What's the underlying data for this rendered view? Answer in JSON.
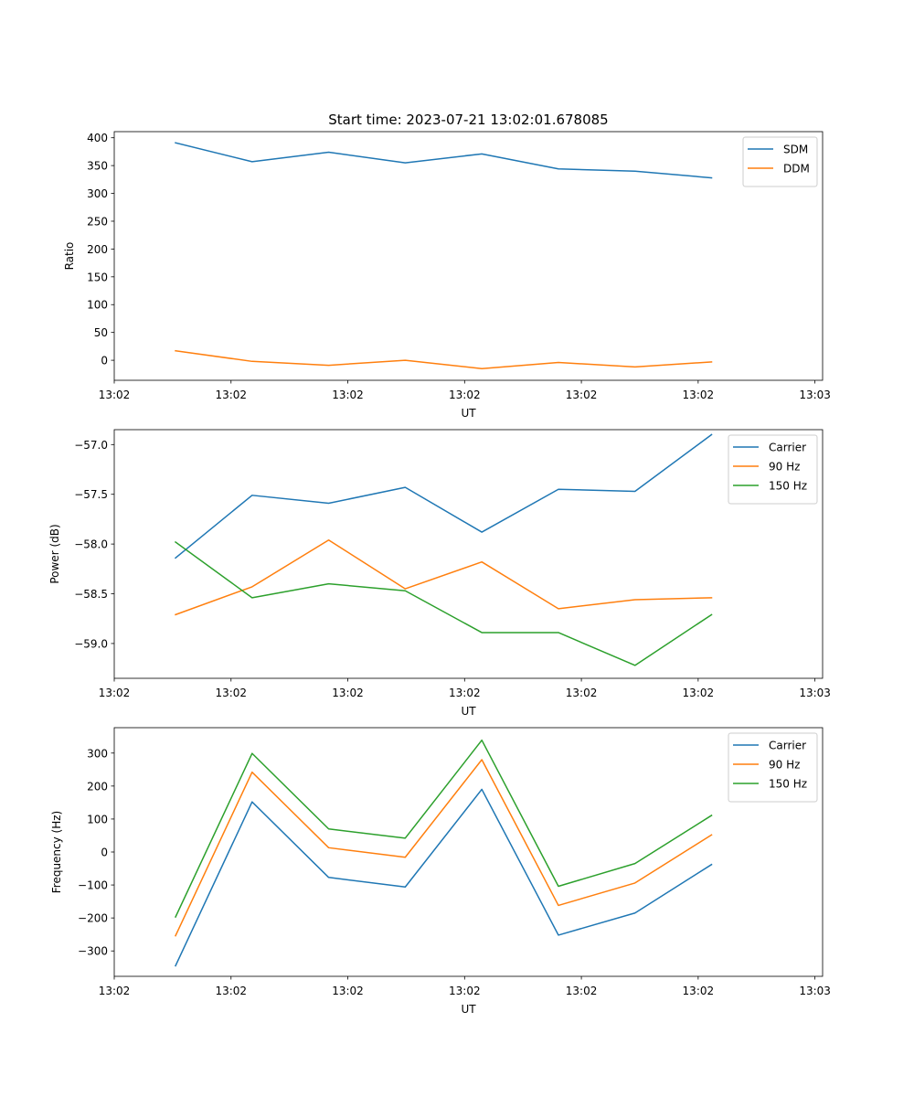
{
  "figure_title": "Start time: 2023-07-21 13:02:01.678085",
  "colors": {
    "blue": "#1f77b4",
    "orange": "#ff7f0e",
    "green": "#2ca02c"
  },
  "chart_data": [
    {
      "type": "line",
      "title": "Start time: 2023-07-21 13:02:01.678085",
      "xlabel": "UT",
      "ylabel": "Ratio",
      "x": [
        1,
        2,
        3,
        4,
        5,
        6,
        7,
        8
      ],
      "xlim": [
        0.2,
        9.45
      ],
      "xticks": [
        0.2,
        1.725,
        3.25,
        4.775,
        6.3,
        7.825,
        9.35
      ],
      "xtick_labels": [
        "13:02",
        "13:02",
        "13:02",
        "13:02",
        "13:02",
        "13:02",
        "13:03"
      ],
      "ylim": [
        -36,
        411
      ],
      "yticks": [
        0,
        50,
        100,
        150,
        200,
        250,
        300,
        350,
        400
      ],
      "ytick_labels": [
        "0",
        "50",
        "100",
        "150",
        "200",
        "250",
        "300",
        "350",
        "400"
      ],
      "legend": "top-right",
      "series": [
        {
          "name": "SDM",
          "color": "#1f77b4",
          "values": [
            391,
            357,
            374,
            355,
            371,
            344,
            340,
            328
          ]
        },
        {
          "name": "DDM",
          "color": "#ff7f0e",
          "values": [
            17,
            -2,
            -9,
            0,
            -15,
            -4,
            -12,
            -3
          ]
        }
      ]
    },
    {
      "type": "line",
      "xlabel": "UT",
      "ylabel": "Power (dB)",
      "x": [
        1,
        2,
        3,
        4,
        5,
        6,
        7,
        8
      ],
      "xlim": [
        0.2,
        9.45
      ],
      "xticks": [
        0.2,
        1.725,
        3.25,
        4.775,
        6.3,
        7.825,
        9.35
      ],
      "xtick_labels": [
        "13:02",
        "13:02",
        "13:02",
        "13:02",
        "13:02",
        "13:02",
        "13:03"
      ],
      "ylim": [
        -59.35,
        -56.85
      ],
      "yticks": [
        -59.0,
        -58.5,
        -58.0,
        -57.5,
        -57.0
      ],
      "ytick_labels": [
        "−59.0",
        "−58.5",
        "−58.0",
        "−57.5",
        "−57.0"
      ],
      "legend": "top-right",
      "series": [
        {
          "name": "Carrier",
          "color": "#1f77b4",
          "values": [
            -58.14,
            -57.51,
            -57.59,
            -57.43,
            -57.88,
            -57.45,
            -57.47,
            -56.9
          ]
        },
        {
          "name": "90 Hz",
          "color": "#ff7f0e",
          "values": [
            -58.71,
            -58.43,
            -57.96,
            -58.45,
            -58.18,
            -58.65,
            -58.56,
            -58.54
          ]
        },
        {
          "name": "150 Hz",
          "color": "#2ca02c",
          "values": [
            -57.98,
            -58.54,
            -58.4,
            -58.47,
            -58.89,
            -58.89,
            -59.22,
            -58.71
          ]
        }
      ]
    },
    {
      "type": "line",
      "xlabel": "UT",
      "ylabel": "Frequency (Hz)",
      "x": [
        1,
        2,
        3,
        4,
        5,
        6,
        7,
        8
      ],
      "xlim": [
        0.2,
        9.45
      ],
      "xticks": [
        0.2,
        1.725,
        3.25,
        4.775,
        6.3,
        7.825,
        9.35
      ],
      "xtick_labels": [
        "13:02",
        "13:02",
        "13:02",
        "13:02",
        "13:02",
        "13:02",
        "13:03"
      ],
      "ylim": [
        -377,
        377
      ],
      "yticks": [
        -300,
        -200,
        -100,
        0,
        100,
        200,
        300
      ],
      "ytick_labels": [
        "−300",
        "−200",
        "−100",
        "0",
        "100",
        "200",
        "300"
      ],
      "legend": "top-right",
      "series": [
        {
          "name": "Carrier",
          "color": "#1f77b4",
          "values": [
            -345,
            152,
            -77,
            -106,
            190,
            -252,
            -185,
            -38
          ]
        },
        {
          "name": "90 Hz",
          "color": "#ff7f0e",
          "values": [
            -254,
            242,
            13,
            -16,
            280,
            -162,
            -94,
            52
          ]
        },
        {
          "name": "150 Hz",
          "color": "#2ca02c",
          "values": [
            -197,
            299,
            70,
            42,
            339,
            -104,
            -35,
            111
          ]
        }
      ]
    }
  ]
}
